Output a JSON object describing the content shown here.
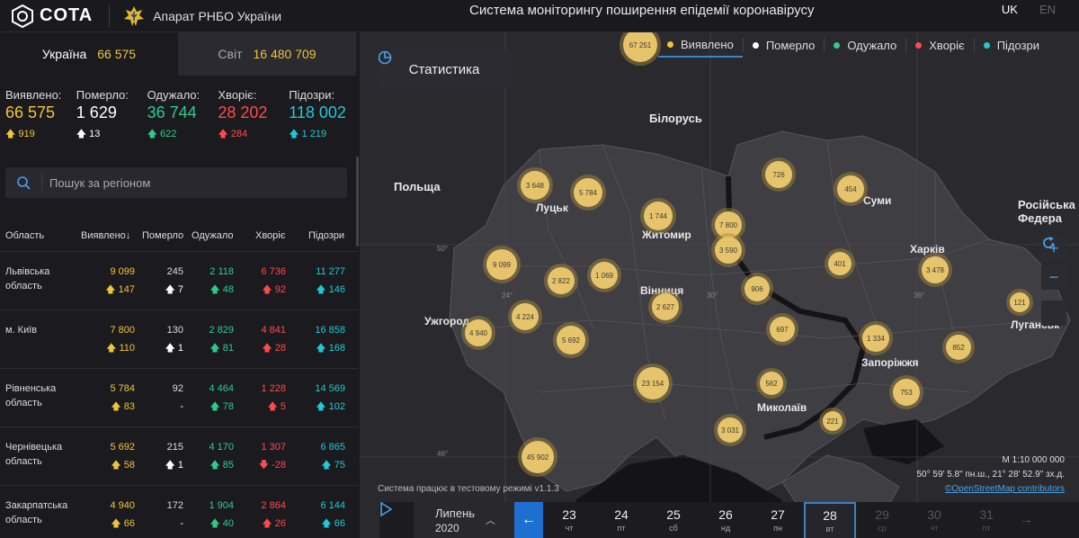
{
  "header": {
    "logo_text": "COTA",
    "org_name": "Апарат РНБО України",
    "system_title": "Система моніторингу поширення епідемії коронавірусу",
    "lang_active": "UK",
    "lang_inactive": "EN"
  },
  "scopes": {
    "ukraine": {
      "label": "Україна",
      "value": "66 575"
    },
    "world": {
      "label": "Світ",
      "value": "16 480 709"
    }
  },
  "totals": [
    {
      "label": "Виявлено:",
      "value": "66 575",
      "delta": "919",
      "kind": "conf"
    },
    {
      "label": "Померло:",
      "value": "1 629",
      "delta": "13",
      "kind": "dead"
    },
    {
      "label": "Одужало:",
      "value": "36 744",
      "delta": "622",
      "kind": "rec"
    },
    {
      "label": "Хворіє:",
      "value": "28 202",
      "delta": "284",
      "kind": "sick"
    },
    {
      "label": "Підозри:",
      "value": "118 002",
      "delta": "1 219",
      "kind": "susp"
    }
  ],
  "search": {
    "placeholder": "Пошук за регіоном"
  },
  "table": {
    "headers": [
      "Область",
      "Виявлено",
      "Померло",
      "Одужало",
      "Хворіє",
      "Підозри"
    ],
    "sort_arrow": "↓",
    "rows": [
      {
        "region": "Львівська область",
        "conf": "9 099",
        "conf_d": "147",
        "dead": "245",
        "dead_d": "7",
        "rec": "2 118",
        "rec_d": "48",
        "sick": "6 736",
        "sick_d": "92",
        "susp": "11 277",
        "susp_d": "146"
      },
      {
        "region": "м. Київ",
        "conf": "7 800",
        "conf_d": "110",
        "dead": "130",
        "dead_d": "1",
        "rec": "2 829",
        "rec_d": "81",
        "sick": "4 841",
        "sick_d": "28",
        "susp": "16 858",
        "susp_d": "168"
      },
      {
        "region": "Рівненська область",
        "conf": "5 784",
        "conf_d": "83",
        "dead": "92",
        "dead_d": "-",
        "rec": "4 464",
        "rec_d": "78",
        "sick": "1 228",
        "sick_d": "5",
        "susp": "14 569",
        "susp_d": "102"
      },
      {
        "region": "Чернівецька область",
        "conf": "5 692",
        "conf_d": "58",
        "dead": "215",
        "dead_d": "1",
        "rec": "4 170",
        "rec_d": "85",
        "sick": "1 307",
        "sick_d": "-28",
        "susp": "6 865",
        "susp_d": "75"
      },
      {
        "region": "Закарпатська область",
        "conf": "4 940",
        "conf_d": "66",
        "dead": "172",
        "dead_d": "-",
        "rec": "1 904",
        "rec_d": "40",
        "sick": "2 864",
        "sick_d": "26",
        "susp": "6 144",
        "susp_d": "66"
      }
    ]
  },
  "map": {
    "stat_button": "Статистика",
    "legend": [
      "Виявлено",
      "Померло",
      "Одужало",
      "Хворіє",
      "Підозри"
    ],
    "legend_colors": [
      "#f0c43a",
      "#ffffff",
      "#2ecc8a",
      "#ff4a4a",
      "#20c9d4"
    ],
    "labels": {
      "belarus": "Білорусь",
      "poland": "Польща",
      "russia": "Російська Федера",
      "lutsk": "Луцьк",
      "zhytomyr": "Житомир",
      "sumy": "Суми",
      "kharkiv": "Харків",
      "vinnytsia": "Вінниця",
      "uzhhorod": "Ужгород",
      "zaporizhzhia": "Запоріжжя",
      "mykolaiv": "Миколаїв",
      "luhansk": "Луганськ"
    },
    "coords": [
      "50°",
      "46°",
      "24°",
      "30°",
      "36°"
    ],
    "clusters": [
      "67 251",
      "3 648",
      "5 784",
      "1 744",
      "7 800",
      "726",
      "454",
      "3 590",
      "9 099",
      "2 822",
      "1 069",
      "401",
      "3 478",
      "906",
      "2 627",
      "4 224",
      "4 940",
      "5 692",
      "697",
      "121",
      "1 334",
      "852",
      "23 154",
      "562",
      "753",
      "3 031",
      "221",
      "45 902"
    ],
    "scale": "М 1:10 000 000",
    "coordinates_readout": "50° 59' 5.8\" пн.ш., 21° 28' 52.9\" зх.д.",
    "attribution": "©OpenStreetMap contributors",
    "test_mode": "Система працює в тестовому режимі v1.1.3"
  },
  "timeline": {
    "month": "Липень",
    "year": "2020",
    "days": [
      {
        "n": "23",
        "w": "чт"
      },
      {
        "n": "24",
        "w": "пт"
      },
      {
        "n": "25",
        "w": "сб"
      },
      {
        "n": "26",
        "w": "нд"
      },
      {
        "n": "27",
        "w": "пн"
      },
      {
        "n": "28",
        "w": "вт"
      },
      {
        "n": "29",
        "w": "ср"
      },
      {
        "n": "30",
        "w": "чт"
      },
      {
        "n": "31",
        "w": "пт"
      }
    ],
    "selected_index": 5
  }
}
